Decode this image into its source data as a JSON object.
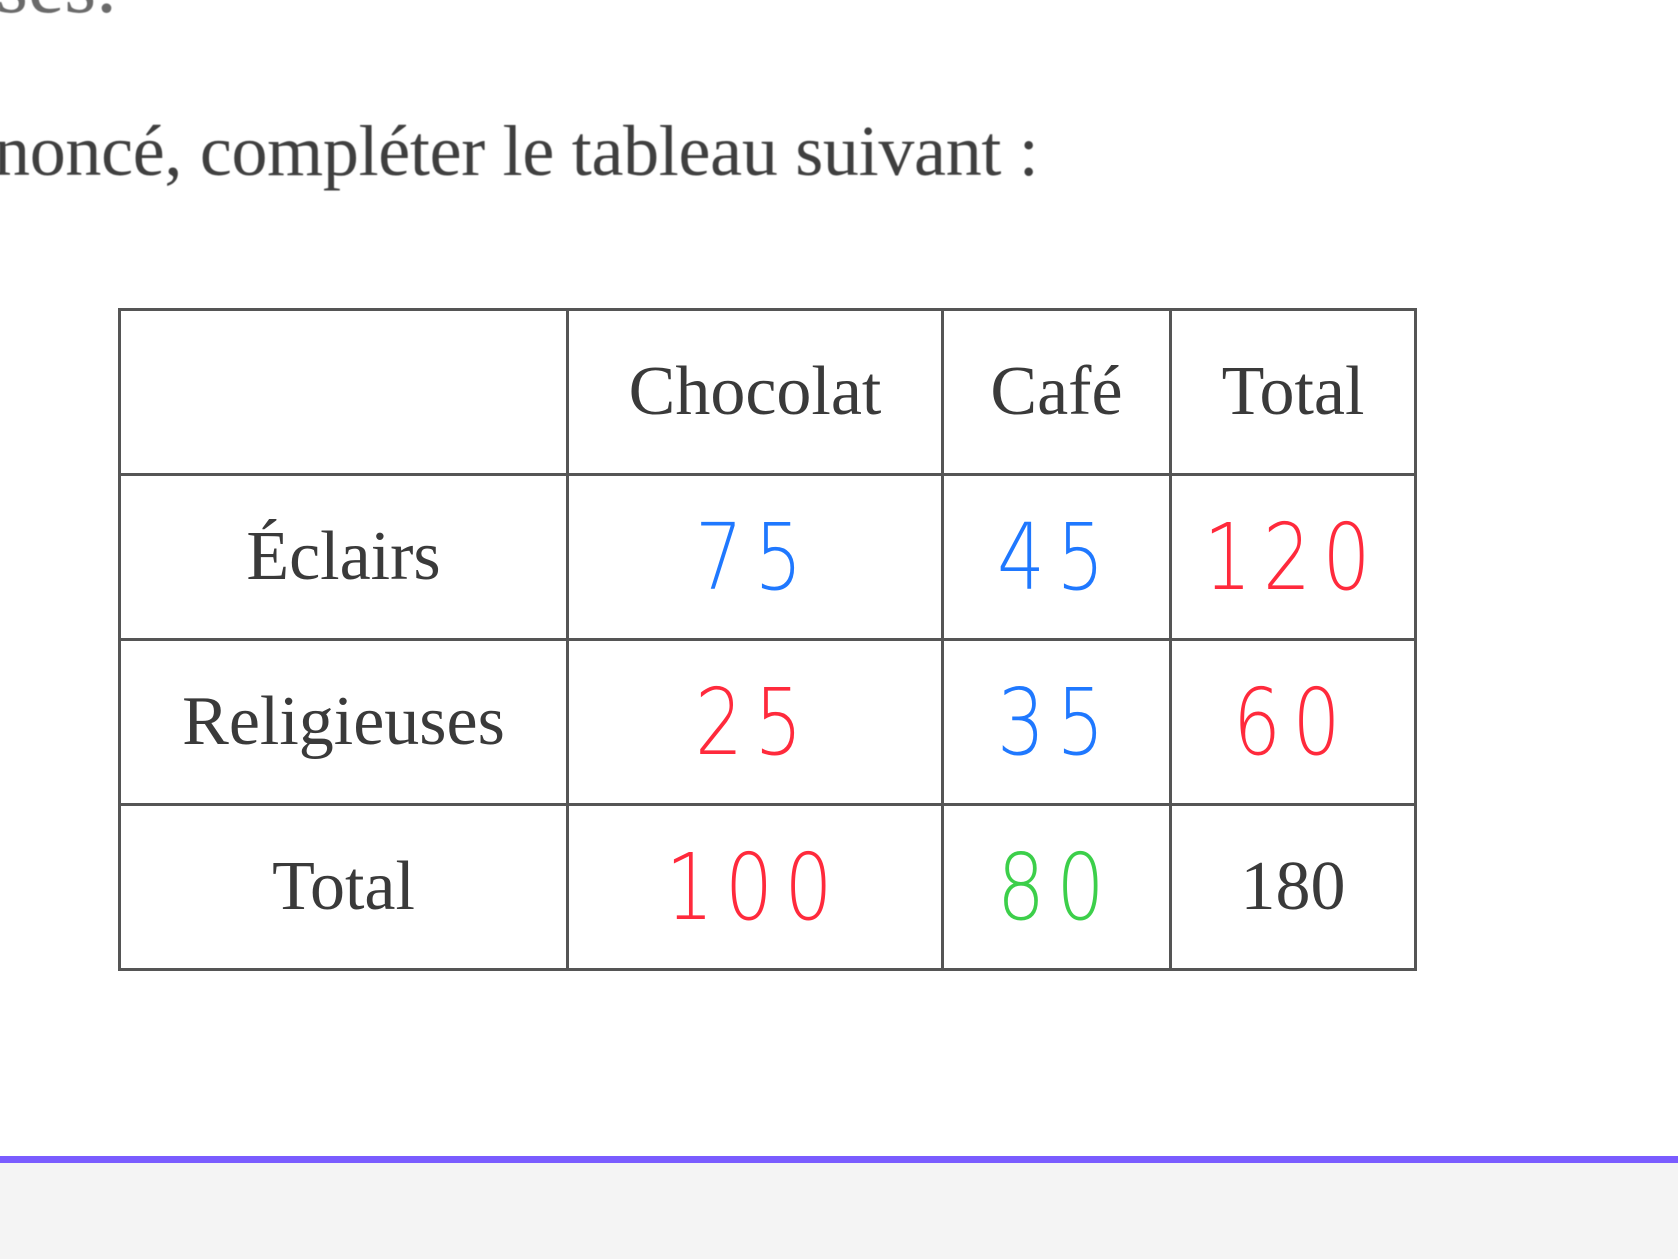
{
  "document": {
    "top_fragment": "ses.",
    "instruction": "noncé, compléter le tableau suivant :"
  },
  "table": {
    "header": [
      "",
      "Chocolat",
      "Café",
      "Total"
    ],
    "rows": [
      {
        "label": "Éclairs",
        "chocolat": {
          "value": "75",
          "ink": "blue"
        },
        "cafe": {
          "value": "45",
          "ink": "blue"
        },
        "total": {
          "value": "120",
          "ink": "red"
        }
      },
      {
        "label": "Religieuses",
        "chocolat": {
          "value": "25",
          "ink": "red"
        },
        "cafe": {
          "value": "35",
          "ink": "blue"
        },
        "total": {
          "value": "60",
          "ink": "red"
        }
      },
      {
        "label": "Total",
        "chocolat": {
          "value": "100",
          "ink": "red"
        },
        "cafe": {
          "value": "80",
          "ink": "green"
        },
        "total": {
          "value": "180",
          "ink": "printed"
        }
      }
    ]
  },
  "colors": {
    "blue_ink": "#1f78ff",
    "red_ink": "#ff2a3c",
    "green_ink": "#3ccf4a",
    "bottom_accent": "#7a5cff"
  }
}
